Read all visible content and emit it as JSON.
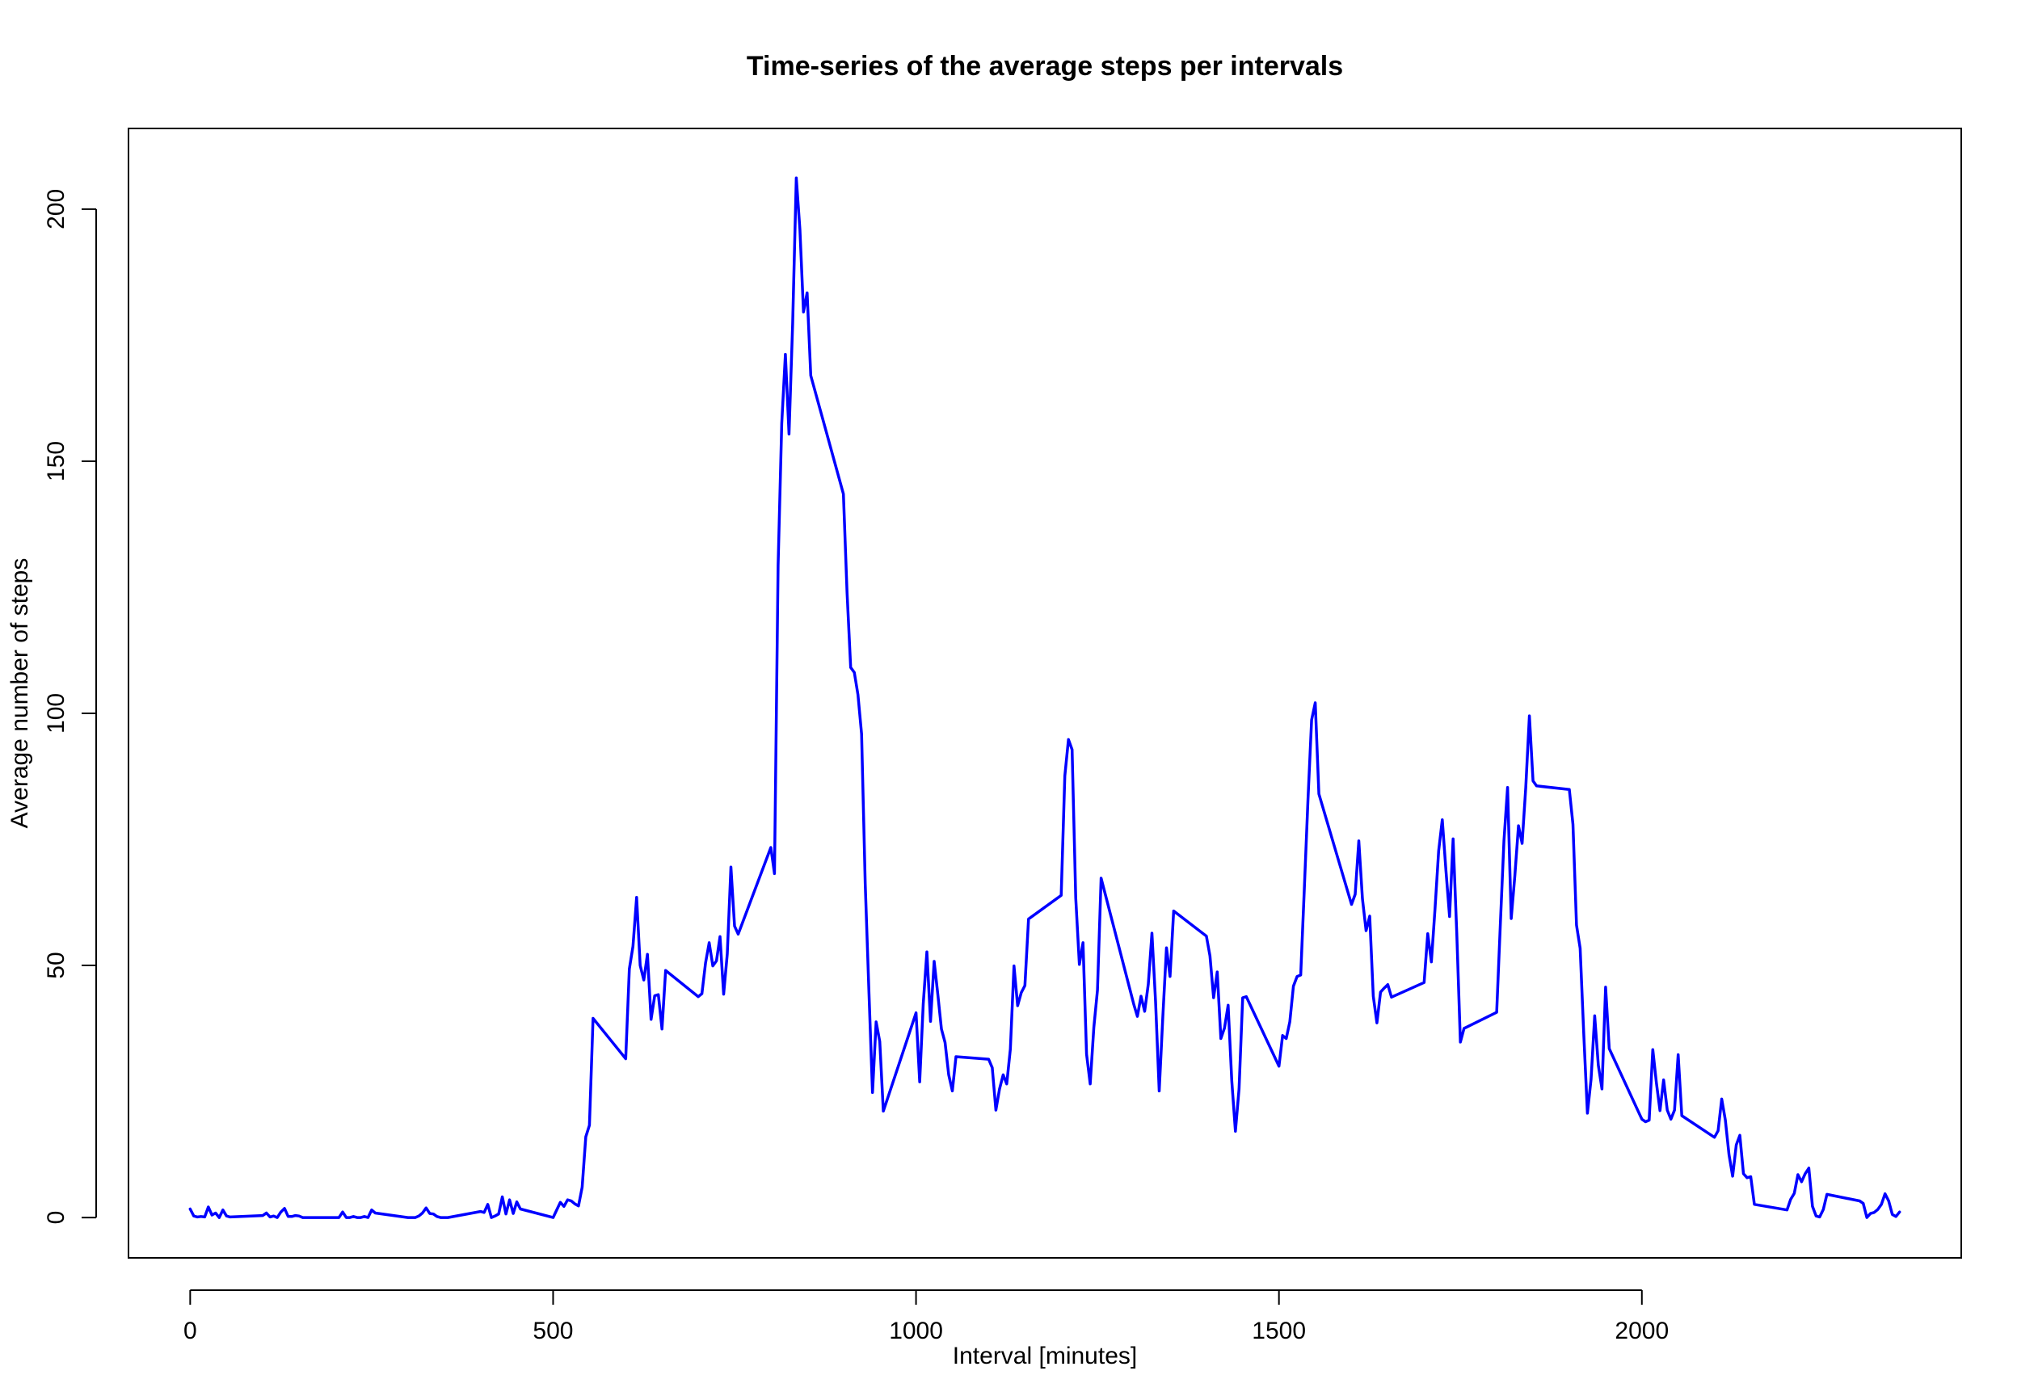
{
  "chart_data": {
    "type": "line",
    "title": "Time-series of the average steps per intervals",
    "xlabel": "Interval [minutes]",
    "ylabel": "Average number of steps",
    "xlim": [
      -85,
      2440
    ],
    "ylim": [
      -8,
      216
    ],
    "x_ticks": [
      0,
      500,
      1000,
      1500,
      2000
    ],
    "x_tick_labels": [
      "0",
      "500",
      "1000",
      "1500",
      "2000"
    ],
    "y_ticks": [
      0,
      50,
      100,
      150,
      200
    ],
    "y_tick_labels": [
      "0",
      "50",
      "100",
      "150",
      "200"
    ],
    "grid": false,
    "legend": "none",
    "series": [
      {
        "color": "#0000ff",
        "x": [
          0,
          5,
          10,
          15,
          20,
          25,
          30,
          35,
          40,
          45,
          50,
          55,
          100,
          105,
          110,
          115,
          120,
          125,
          130,
          135,
          140,
          145,
          150,
          155,
          200,
          205,
          210,
          215,
          220,
          225,
          230,
          235,
          240,
          245,
          250,
          255,
          300,
          305,
          310,
          315,
          320,
          325,
          330,
          335,
          340,
          345,
          350,
          355,
          400,
          405,
          410,
          415,
          420,
          425,
          430,
          435,
          440,
          445,
          450,
          455,
          500,
          505,
          510,
          515,
          520,
          525,
          530,
          535,
          540,
          545,
          550,
          555,
          600,
          605,
          610,
          615,
          620,
          625,
          630,
          635,
          640,
          645,
          650,
          655,
          700,
          705,
          710,
          715,
          720,
          725,
          730,
          735,
          740,
          745,
          750,
          755,
          800,
          805,
          810,
          815,
          820,
          825,
          830,
          835,
          840,
          845,
          850,
          855,
          900,
          905,
          910,
          915,
          920,
          925,
          930,
          935,
          940,
          945,
          950,
          955,
          1000,
          1005,
          1010,
          1015,
          1020,
          1025,
          1030,
          1035,
          1040,
          1045,
          1050,
          1055,
          1100,
          1105,
          1110,
          1115,
          1120,
          1125,
          1130,
          1135,
          1140,
          1145,
          1150,
          1155,
          1200,
          1205,
          1210,
          1215,
          1220,
          1225,
          1230,
          1235,
          1240,
          1245,
          1250,
          1255,
          1300,
          1305,
          1310,
          1315,
          1320,
          1325,
          1330,
          1335,
          1340,
          1345,
          1350,
          1355,
          1400,
          1405,
          1410,
          1415,
          1420,
          1425,
          1430,
          1435,
          1440,
          1445,
          1450,
          1455,
          1500,
          1505,
          1510,
          1515,
          1520,
          1525,
          1530,
          1535,
          1540,
          1545,
          1550,
          1555,
          1600,
          1605,
          1610,
          1615,
          1620,
          1625,
          1630,
          1635,
          1640,
          1645,
          1650,
          1655,
          1700,
          1705,
          1710,
          1715,
          1720,
          1725,
          1730,
          1735,
          1740,
          1745,
          1750,
          1755,
          1800,
          1805,
          1810,
          1815,
          1820,
          1825,
          1830,
          1835,
          1840,
          1845,
          1850,
          1855,
          1900,
          1905,
          1910,
          1915,
          1920,
          1925,
          1930,
          1935,
          1940,
          1945,
          1950,
          1955,
          2000,
          2005,
          2010,
          2015,
          2020,
          2025,
          2030,
          2035,
          2040,
          2045,
          2050,
          2055,
          2100,
          2105,
          2110,
          2115,
          2120,
          2125,
          2130,
          2135,
          2140,
          2145,
          2150,
          2155,
          2200,
          2205,
          2210,
          2215,
          2220,
          2225,
          2230,
          2235,
          2240,
          2245,
          2250,
          2255,
          2300,
          2305,
          2310,
          2315,
          2320,
          2325,
          2330,
          2335,
          2340,
          2345,
          2350,
          2355
        ],
        "y": [
          1.7,
          0.3,
          0.1,
          0.2,
          0.1,
          2.1,
          0.5,
          0.9,
          0.0,
          1.5,
          0.3,
          0.1,
          0.4,
          0.9,
          0.1,
          0.3,
          0.0,
          1.1,
          1.8,
          0.2,
          0.2,
          0.4,
          0.3,
          0.0,
          0.0,
          0.0,
          1.1,
          0.0,
          0.0,
          0.2,
          0.0,
          0.0,
          0.2,
          0.0,
          1.5,
          0.9,
          0.0,
          0.0,
          0.0,
          0.3,
          0.9,
          1.9,
          0.8,
          0.7,
          0.2,
          0.0,
          0.0,
          0.0,
          1.2,
          1.0,
          2.6,
          0.0,
          0.3,
          0.7,
          4.1,
          0.7,
          3.5,
          0.8,
          3.1,
          1.7,
          0.0,
          1.5,
          3.0,
          2.2,
          3.5,
          3.3,
          2.7,
          2.3,
          6.0,
          16.0,
          18.3,
          39.5,
          31.5,
          49.3,
          53.8,
          63.5,
          50.0,
          47.1,
          52.2,
          39.3,
          44.0,
          44.2,
          37.4,
          49.0,
          43.8,
          44.4,
          50.5,
          54.5,
          49.9,
          50.9,
          55.7,
          44.3,
          52.3,
          69.5,
          57.8,
          56.2,
          73.4,
          68.2,
          129.4,
          157.5,
          171.2,
          155.4,
          177.3,
          206.2,
          195.9,
          179.6,
          183.4,
          167.0,
          143.5,
          124.0,
          109.1,
          108.1,
          103.7,
          95.9,
          66.2,
          45.2,
          24.8,
          38.8,
          34.9,
          21.1,
          40.6,
          26.9,
          42.4,
          52.7,
          38.9,
          50.8,
          44.3,
          37.4,
          34.7,
          28.3,
          25.1,
          31.9,
          31.4,
          29.7,
          21.3,
          25.5,
          28.3,
          26.5,
          33.4,
          49.9,
          42.0,
          44.6,
          46.0,
          59.2,
          63.9,
          87.6,
          94.8,
          92.8,
          63.4,
          50.2,
          54.5,
          32.4,
          26.5,
          37.7,
          45.1,
          67.3,
          42.3,
          39.9,
          43.9,
          40.9,
          46.3,
          56.4,
          42.8,
          25.1,
          39.9,
          53.5,
          47.8,
          60.8,
          55.8,
          51.9,
          43.6,
          48.7,
          35.5,
          37.6,
          42.1,
          27.1,
          17.1,
          25.5,
          43.6,
          43.8,
          30.0,
          36.1,
          35.5,
          38.8,
          45.9,
          47.8,
          48.1,
          65.3,
          82.9,
          98.7,
          102.1,
          84.0,
          62.1,
          64.1,
          74.7,
          63.2,
          56.9,
          59.8,
          43.9,
          38.6,
          44.7,
          45.5,
          46.2,
          43.7,
          46.6,
          56.3,
          50.7,
          61.2,
          72.7,
          78.9,
          68.9,
          59.7,
          75.1,
          56.5,
          34.8,
          37.5,
          40.7,
          58.0,
          74.7,
          85.3,
          59.3,
          67.8,
          77.7,
          74.2,
          85.3,
          99.5,
          86.6,
          85.6,
          84.9,
          78.0,
          58.0,
          53.4,
          36.3,
          20.7,
          27.4,
          40.0,
          30.2,
          25.5,
          45.7,
          33.5,
          19.5,
          19.0,
          19.3,
          33.3,
          26.8,
          21.2,
          27.3,
          21.3,
          19.5,
          21.3,
          32.3,
          20.2,
          15.9,
          17.2,
          23.5,
          19.3,
          12.5,
          8.2,
          14.4,
          16.3,
          8.7,
          7.9,
          8.1,
          2.6,
          1.5,
          3.6,
          4.8,
          8.5,
          7.1,
          8.7,
          9.8,
          2.2,
          0.3,
          0.1,
          1.6,
          4.6,
          3.3,
          2.8,
          0.0,
          0.8,
          1.0,
          1.6,
          2.6,
          4.7,
          3.3,
          0.6,
          0.2,
          1.1
        ]
      }
    ]
  }
}
